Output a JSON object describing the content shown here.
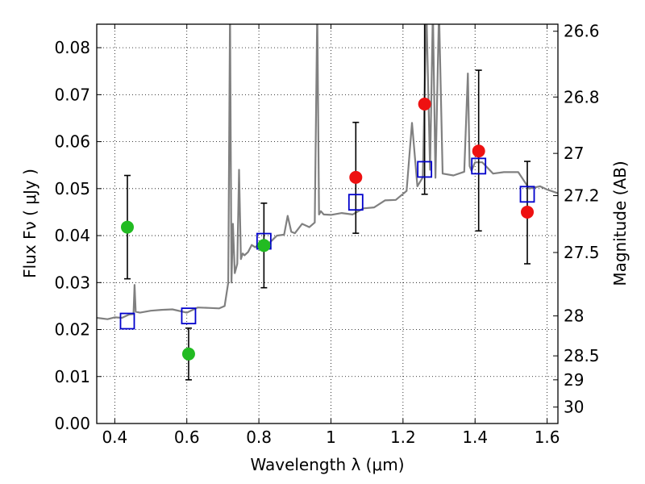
{
  "chart_data": {
    "type": "scatter",
    "xlabel": "Wavelength  λ (μm)",
    "ylabel": "Flux  Fν  ( μJy )",
    "ylabel_right": "Magnitude (AB)",
    "xlim": [
      0.35,
      1.63
    ],
    "ylim": [
      0.0,
      0.085
    ],
    "grid": true,
    "x_ticks": [
      0.4,
      0.6,
      0.8,
      1.0,
      1.2,
      1.4,
      1.6
    ],
    "x_tick_labels": [
      "0.4",
      "0.6",
      "0.8",
      "1",
      "1.2",
      "1.4",
      "1.6"
    ],
    "y_ticks": [
      0.0,
      0.01,
      0.02,
      0.03,
      0.04,
      0.05,
      0.06,
      0.07,
      0.08
    ],
    "y_tick_labels": [
      "0.00",
      "0.01",
      "0.02",
      "0.03",
      "0.04",
      "0.05",
      "0.06",
      "0.07",
      "0.08"
    ],
    "right_ticks": [
      {
        "label": "26.6",
        "flux": 0.0835
      },
      {
        "label": "26.8",
        "flux": 0.0695
      },
      {
        "label": "27",
        "flux": 0.0575
      },
      {
        "label": "27.2",
        "flux": 0.0485
      },
      {
        "label": "27.5",
        "flux": 0.0364
      },
      {
        "label": "28",
        "flux": 0.0229
      },
      {
        "label": "28.5",
        "flux": 0.0144
      },
      {
        "label": "29",
        "flux": 0.0093
      },
      {
        "label": "30",
        "flux": 0.0035
      }
    ],
    "series": [
      {
        "style": "green-circle",
        "color": "#22bb22",
        "points": [
          {
            "x": 0.435,
            "y": 0.0418,
            "lo": 0.0308,
            "hi": 0.0528
          },
          {
            "x": 0.605,
            "y": 0.0148,
            "lo": 0.0093,
            "hi": 0.0203
          },
          {
            "x": 0.814,
            "y": 0.0379,
            "lo": 0.0289,
            "hi": 0.0469
          }
        ]
      },
      {
        "style": "red-circle",
        "color": "#ee1111",
        "points": [
          {
            "x": 1.069,
            "y": 0.0524,
            "lo": 0.0405,
            "hi": 0.0641
          },
          {
            "x": 1.26,
            "y": 0.068,
            "lo": 0.0488,
            "hi": 0.0872
          },
          {
            "x": 1.41,
            "y": 0.058,
            "lo": 0.041,
            "hi": 0.0752
          },
          {
            "x": 1.545,
            "y": 0.045,
            "lo": 0.034,
            "hi": 0.0558
          }
        ]
      },
      {
        "style": "blue-square",
        "color": "#0000cc",
        "points": [
          {
            "x": 0.435,
            "y": 0.0218
          },
          {
            "x": 0.605,
            "y": 0.0229
          },
          {
            "x": 0.814,
            "y": 0.0388
          },
          {
            "x": 1.069,
            "y": 0.0471
          },
          {
            "x": 1.26,
            "y": 0.0541
          },
          {
            "x": 1.41,
            "y": 0.0548
          },
          {
            "x": 1.545,
            "y": 0.0488
          }
        ]
      },
      {
        "style": "spectrum-line",
        "color": "#808080",
        "x": [
          0.35,
          0.38,
          0.4,
          0.42,
          0.44,
          0.452,
          0.455,
          0.458,
          0.47,
          0.5,
          0.53,
          0.56,
          0.6,
          0.63,
          0.66,
          0.69,
          0.705,
          0.715,
          0.72,
          0.724,
          0.728,
          0.733,
          0.74,
          0.745,
          0.75,
          0.755,
          0.76,
          0.77,
          0.78,
          0.79,
          0.8,
          0.81,
          0.83,
          0.85,
          0.87,
          0.88,
          0.89,
          0.9,
          0.92,
          0.94,
          0.955,
          0.962,
          0.967,
          0.972,
          0.98,
          1.0,
          1.03,
          1.06,
          1.09,
          1.12,
          1.15,
          1.18,
          1.21,
          1.225,
          1.24,
          1.255,
          1.265,
          1.275,
          1.283,
          1.29,
          1.3,
          1.31,
          1.34,
          1.37,
          1.38,
          1.385,
          1.39,
          1.4,
          1.42,
          1.45,
          1.48,
          1.52,
          1.55,
          1.58,
          1.6,
          1.63
        ],
        "y": [
          0.0225,
          0.0222,
          0.0226,
          0.0225,
          0.0232,
          0.0233,
          0.0295,
          0.0238,
          0.0236,
          0.024,
          0.0242,
          0.0243,
          0.0236,
          0.0247,
          0.0246,
          0.0245,
          0.025,
          0.03,
          0.088,
          0.03,
          0.0425,
          0.032,
          0.034,
          0.054,
          0.035,
          0.0362,
          0.0358,
          0.0365,
          0.038,
          0.0375,
          0.0382,
          0.038,
          0.0385,
          0.04,
          0.0402,
          0.0442,
          0.0408,
          0.0405,
          0.0425,
          0.0418,
          0.0428,
          0.088,
          0.0445,
          0.0452,
          0.0445,
          0.0444,
          0.0448,
          0.0445,
          0.0458,
          0.046,
          0.0475,
          0.0476,
          0.0495,
          0.064,
          0.0505,
          0.0524,
          0.088,
          0.054,
          0.088,
          0.0523,
          0.088,
          0.0532,
          0.0528,
          0.0536,
          0.0745,
          0.0548,
          0.0538,
          0.0556,
          0.0556,
          0.0532,
          0.0535,
          0.0535,
          0.05,
          0.0505,
          0.0498,
          0.049
        ]
      }
    ]
  }
}
